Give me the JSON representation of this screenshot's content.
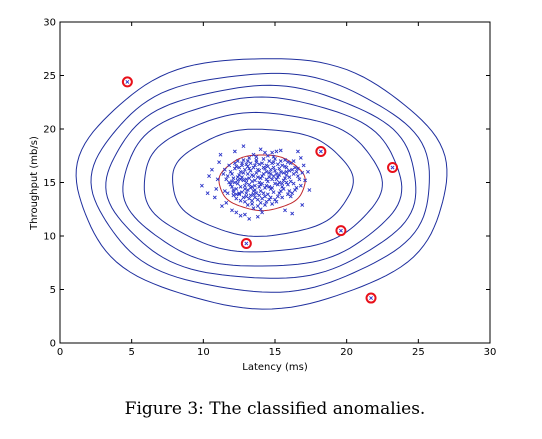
{
  "chart_data": {
    "type": "scatter",
    "xlabel": "Latency (ms)",
    "ylabel": "Throughput (mb/s)",
    "xlim": [
      0,
      30
    ],
    "ylim": [
      0,
      30
    ],
    "xticks": [
      0,
      5,
      10,
      15,
      20,
      25,
      30
    ],
    "yticks": [
      0,
      5,
      10,
      15,
      20,
      25,
      30
    ],
    "grid": false,
    "caption": "Figure 3:  The classified anomalies.",
    "center": [
      14.1,
      15.0
    ],
    "contour_color": "#1f2f9e",
    "decision_boundary_color": "#c0282d",
    "anomaly_color": "#e8101a",
    "point_color": "#2b34c8",
    "contours": [
      {
        "rx": 3.0,
        "ry": 2.6,
        "color": "#c0282d"
      },
      {
        "rx": 6.3,
        "ry": 5.0,
        "color": "#1f2f9e"
      },
      {
        "rx": 8.3,
        "ry": 6.5,
        "color": "#1f2f9e"
      },
      {
        "rx": 9.7,
        "ry": 7.9,
        "color": "#1f2f9e"
      },
      {
        "rx": 10.8,
        "ry": 9.0,
        "color": "#1f2f9e"
      },
      {
        "rx": 11.8,
        "ry": 10.2,
        "color": "#1f2f9e"
      },
      {
        "rx": 12.9,
        "ry": 11.7,
        "color": "#1f2f9e"
      }
    ],
    "anomalies": [
      {
        "x": 4.7,
        "y": 24.4
      },
      {
        "x": 18.2,
        "y": 17.9
      },
      {
        "x": 23.2,
        "y": 16.4
      },
      {
        "x": 13.0,
        "y": 9.3
      },
      {
        "x": 19.6,
        "y": 10.5
      },
      {
        "x": 21.7,
        "y": 4.2
      }
    ],
    "normal_points": [
      [
        13.2,
        15.4
      ],
      [
        14.0,
        14.8
      ],
      [
        14.6,
        15.9
      ],
      [
        13.5,
        14.2
      ],
      [
        15.1,
        15.3
      ],
      [
        12.8,
        15.9
      ],
      [
        14.2,
        16.4
      ],
      [
        13.9,
        13.8
      ],
      [
        15.5,
        14.6
      ],
      [
        12.6,
        14.6
      ],
      [
        14.8,
        16.8
      ],
      [
        13.1,
        16.5
      ],
      [
        16.0,
        15.5
      ],
      [
        12.4,
        15.2
      ],
      [
        14.4,
        13.2
      ],
      [
        15.8,
        16.4
      ],
      [
        13.7,
        17.1
      ],
      [
        11.9,
        14.8
      ],
      [
        15.2,
        13.7
      ],
      [
        13.4,
        13.3
      ],
      [
        16.3,
        14.9
      ],
      [
        12.2,
        16.3
      ],
      [
        14.9,
        17.4
      ],
      [
        13.0,
        13.7
      ],
      [
        15.6,
        15.9
      ],
      [
        12.9,
        14.4
      ],
      [
        14.1,
        15.6
      ],
      [
        13.6,
        15.2
      ],
      [
        14.7,
        14.4
      ],
      [
        13.3,
        16.1
      ],
      [
        15.0,
        16.1
      ],
      [
        12.5,
        13.9
      ],
      [
        16.5,
        16.0
      ],
      [
        11.7,
        15.6
      ],
      [
        14.3,
        17.8
      ],
      [
        13.8,
        12.8
      ],
      [
        15.9,
        13.9
      ],
      [
        12.1,
        14.1
      ],
      [
        14.5,
        15.1
      ],
      [
        13.2,
        14.8
      ],
      [
        15.3,
        15.0
      ],
      [
        12.7,
        16.8
      ],
      [
        16.1,
        16.8
      ],
      [
        11.5,
        14.2
      ],
      [
        14.0,
        12.5
      ],
      [
        15.7,
        17.1
      ],
      [
        13.5,
        17.6
      ],
      [
        12.3,
        13.5
      ],
      [
        16.7,
        15.3
      ],
      [
        14.8,
        13.0
      ],
      [
        13.9,
        16.7
      ],
      [
        15.4,
        14.2
      ],
      [
        12.0,
        15.8
      ],
      [
        14.6,
        17.0
      ],
      [
        13.1,
        12.9
      ],
      [
        16.4,
        14.3
      ],
      [
        11.8,
        16.6
      ],
      [
        15.1,
        17.9
      ],
      [
        13.6,
        13.6
      ],
      [
        14.3,
        14.5
      ],
      [
        12.8,
        15.2
      ],
      [
        15.8,
        15.0
      ],
      [
        13.4,
        15.7
      ],
      [
        14.9,
        15.6
      ],
      [
        12.4,
        14.9
      ],
      [
        16.2,
        16.2
      ],
      [
        13.0,
        15.0
      ],
      [
        14.7,
        16.2
      ],
      [
        13.7,
        14.0
      ],
      [
        15.2,
        14.8
      ],
      [
        12.6,
        16.0
      ],
      [
        14.1,
        13.5
      ],
      [
        15.5,
        16.6
      ],
      [
        13.3,
        14.5
      ],
      [
        14.4,
        16.0
      ],
      [
        12.9,
        13.2
      ],
      [
        16.0,
        14.2
      ],
      [
        11.6,
        15.3
      ],
      [
        14.2,
        17.2
      ],
      [
        13.8,
        15.5
      ],
      [
        15.0,
        13.4
      ],
      [
        12.3,
        16.5
      ],
      [
        16.6,
        15.6
      ],
      [
        13.5,
        16.4
      ],
      [
        14.5,
        13.9
      ],
      [
        12.1,
        13.8
      ],
      [
        15.3,
        16.3
      ],
      [
        13.2,
        17.3
      ],
      [
        14.0,
        14.2
      ],
      [
        15.6,
        14.4
      ],
      [
        12.7,
        15.5
      ],
      [
        14.8,
        15.3
      ],
      [
        13.6,
        14.7
      ],
      [
        16.3,
        15.8
      ],
      [
        12.2,
        15.0
      ],
      [
        14.3,
        12.9
      ],
      [
        15.7,
        15.4
      ],
      [
        13.9,
        16.1
      ],
      [
        12.5,
        16.4
      ],
      [
        14.6,
        14.6
      ],
      [
        13.0,
        14.0
      ],
      [
        15.1,
        15.8
      ],
      [
        11.4,
        15.8
      ],
      [
        14.1,
        16.8
      ],
      [
        13.4,
        13.0
      ],
      [
        16.8,
        14.7
      ],
      [
        12.0,
        14.6
      ],
      [
        15.4,
        17.0
      ],
      [
        13.7,
        15.9
      ],
      [
        14.9,
        14.1
      ],
      [
        12.8,
        13.6
      ],
      [
        16.1,
        15.1
      ],
      [
        13.1,
        15.8
      ],
      [
        14.4,
        15.3
      ],
      [
        12.4,
        17.0
      ],
      [
        15.9,
        16.9
      ],
      [
        13.5,
        13.9
      ],
      [
        14.7,
        13.6
      ],
      [
        12.6,
        15.3
      ],
      [
        15.2,
        16.7
      ],
      [
        13.3,
        16.8
      ],
      [
        14.2,
        14.0
      ],
      [
        16.4,
        16.4
      ],
      [
        11.9,
        16.0
      ],
      [
        14.0,
        15.4
      ],
      [
        13.8,
        13.4
      ],
      [
        15.5,
        13.6
      ],
      [
        12.3,
        14.4
      ],
      [
        14.8,
        17.8
      ],
      [
        13.6,
        16.6
      ],
      [
        15.0,
        14.9
      ],
      [
        12.9,
        16.2
      ],
      [
        16.2,
        14.0
      ],
      [
        13.2,
        13.5
      ],
      [
        14.5,
        16.5
      ],
      [
        12.1,
        15.4
      ],
      [
        15.8,
        15.7
      ],
      [
        13.9,
        14.6
      ],
      [
        14.3,
        16.3
      ],
      [
        12.7,
        14.1
      ],
      [
        16.6,
        16.3
      ],
      [
        13.4,
        15.1
      ],
      [
        14.9,
        16.9
      ],
      [
        12.5,
        15.7
      ],
      [
        15.3,
        14.0
      ],
      [
        13.0,
        16.7
      ],
      [
        14.1,
        14.9
      ],
      [
        15.6,
        15.2
      ],
      [
        11.7,
        14.0
      ],
      [
        14.6,
        13.4
      ],
      [
        13.7,
        17.4
      ],
      [
        16.0,
        16.1
      ],
      [
        12.2,
        16.8
      ],
      [
        14.4,
        14.7
      ],
      [
        13.1,
        14.3
      ],
      [
        15.1,
        13.2
      ],
      [
        12.8,
        17.1
      ],
      [
        14.7,
        15.8
      ],
      [
        13.5,
        15.6
      ],
      [
        16.5,
        14.5
      ],
      [
        12.0,
        15.1
      ],
      [
        15.4,
        16.0
      ],
      [
        13.3,
        13.8
      ],
      [
        14.2,
        15.8
      ],
      [
        12.6,
        13.3
      ],
      [
        15.9,
        14.8
      ],
      [
        13.8,
        16.2
      ],
      [
        14.0,
        13.1
      ],
      [
        11.5,
        16.2
      ],
      [
        15.2,
        15.5
      ],
      [
        13.6,
        14.3
      ],
      [
        14.8,
        14.5
      ],
      [
        12.4,
        15.5
      ],
      [
        16.3,
        17.0
      ],
      [
        13.2,
        16.3
      ],
      [
        14.5,
        17.5
      ],
      [
        12.9,
        14.7
      ],
      [
        15.7,
        16.5
      ],
      [
        13.4,
        14.6
      ],
      [
        14.1,
        12.2
      ],
      [
        16.9,
        15.9
      ],
      [
        12.3,
        13.9
      ],
      [
        15.0,
        17.2
      ],
      [
        13.9,
        15.0
      ],
      [
        14.6,
        15.5
      ],
      [
        12.7,
        16.6
      ],
      [
        15.5,
        14.9
      ],
      [
        13.0,
        15.3
      ],
      [
        14.3,
        13.7
      ],
      [
        11.8,
        15.0
      ],
      [
        16.1,
        13.7
      ],
      [
        13.7,
        16.9
      ],
      [
        14.9,
        16.4
      ],
      [
        12.1,
        14.3
      ],
      [
        15.3,
        15.7
      ],
      [
        13.5,
        12.6
      ],
      [
        14.4,
        16.6
      ],
      [
        12.5,
        14.0
      ],
      [
        15.8,
        16.0
      ],
      [
        13.1,
        17.0
      ],
      [
        9.9,
        14.7
      ],
      [
        10.8,
        13.6
      ],
      [
        11.3,
        12.8
      ],
      [
        10.4,
        15.6
      ],
      [
        12.3,
        12.2
      ],
      [
        11.1,
        16.9
      ],
      [
        17.1,
        15.2
      ],
      [
        17.4,
        14.3
      ],
      [
        16.8,
        17.3
      ],
      [
        12.0,
        12.4
      ],
      [
        10.9,
        14.4
      ],
      [
        11.6,
        13.1
      ],
      [
        17.0,
        16.6
      ],
      [
        12.9,
        12.0
      ],
      [
        10.6,
        16.2
      ],
      [
        11.2,
        17.6
      ],
      [
        16.9,
        12.9
      ],
      [
        15.7,
        12.4
      ],
      [
        12.2,
        17.9
      ],
      [
        14.0,
        18.1
      ],
      [
        12.6,
        11.9
      ],
      [
        13.8,
        11.8
      ],
      [
        16.6,
        17.9
      ],
      [
        10.3,
        14.0
      ],
      [
        17.3,
        16.0
      ],
      [
        11.0,
        15.3
      ],
      [
        15.4,
        18.0
      ],
      [
        12.8,
        18.4
      ],
      [
        13.2,
        11.6
      ],
      [
        16.2,
        12.1
      ]
    ]
  }
}
